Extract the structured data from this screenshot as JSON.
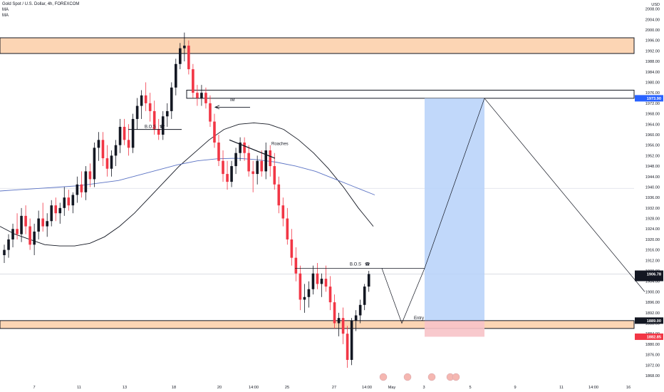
{
  "header": {
    "symbol": "Gold Spot / U.S. Dollar, 4h, FOREXCOM",
    "indicators": [
      "MA",
      "MA"
    ]
  },
  "axis": {
    "currency": "USD",
    "price_ticks": [
      1868,
      1872,
      1876,
      1880,
      1884,
      1888,
      1892,
      1896,
      1900,
      1904,
      1908,
      1912,
      1916,
      1920,
      1924,
      1928,
      1932,
      1936,
      1940,
      1944,
      1948,
      1952,
      1956,
      1960,
      1964,
      1968,
      1972,
      1976,
      1980,
      1984,
      1988,
      1992,
      1996,
      2000,
      2004,
      2008
    ],
    "time_labels": [
      "7",
      "11",
      "13",
      "18",
      "20",
      "14:00",
      "25",
      "27",
      "14:00",
      "May",
      "3",
      "5",
      "9",
      "11",
      "14:00",
      "16"
    ]
  },
  "price_tags": [
    {
      "label": "1973.90",
      "color": "#2962ff",
      "text_color": "#ffffff"
    },
    {
      "label": "1906.78",
      "sub": "47:59",
      "color": "#131722",
      "text_color": "#ffffff"
    },
    {
      "label": "1889.00",
      "color": "#131722",
      "text_color": "#ffffff"
    },
    {
      "label": "1882.85",
      "color": "#f23645",
      "text_color": "#ffffff"
    }
  ],
  "annotations": {
    "bos_left": "B.O.S",
    "bos_right": "B.O.S",
    "imbalance": "IM",
    "roaches": "Roaches",
    "entry": "Entry"
  },
  "colors": {
    "up_candle": "#131722",
    "down_candle": "#f23645",
    "zone_fill": "#fcd5b4",
    "target_fill": "#b6d1f9",
    "stop_fill": "#f7c3c8",
    "ma_fast": "#131722",
    "ma_slow": "#5b73c4"
  },
  "chart_data": {
    "type": "candlestick",
    "title": "Gold Spot / U.S. Dollar, 4h, FOREXCOM",
    "ylim": [
      1866,
      2010
    ],
    "zones": [
      {
        "kind": "supply",
        "low": 1991,
        "high": 1997
      },
      {
        "kind": "imbalance",
        "low": 1973.9,
        "high": 1977
      },
      {
        "kind": "demand",
        "low": 1886,
        "high": 1889
      }
    ],
    "position": {
      "direction": "long",
      "entry": 1889.0,
      "target": 1973.9,
      "stop": 1882.85
    },
    "last_price": 1906.78,
    "candles": [
      {
        "o": 1914,
        "h": 1918,
        "l": 1911,
        "c": 1916
      },
      {
        "o": 1916,
        "h": 1922,
        "l": 1913,
        "c": 1920
      },
      {
        "o": 1920,
        "h": 1926,
        "l": 1917,
        "c": 1924
      },
      {
        "o": 1924,
        "h": 1930,
        "l": 1920,
        "c": 1922
      },
      {
        "o": 1922,
        "h": 1932,
        "l": 1919,
        "c": 1929
      },
      {
        "o": 1929,
        "h": 1933,
        "l": 1922,
        "c": 1925
      },
      {
        "o": 1925,
        "h": 1928,
        "l": 1916,
        "c": 1918
      },
      {
        "o": 1918,
        "h": 1926,
        "l": 1914,
        "c": 1923
      },
      {
        "o": 1923,
        "h": 1931,
        "l": 1920,
        "c": 1928
      },
      {
        "o": 1928,
        "h": 1934,
        "l": 1923,
        "c": 1925
      },
      {
        "o": 1925,
        "h": 1930,
        "l": 1921,
        "c": 1927
      },
      {
        "o": 1927,
        "h": 1935,
        "l": 1925,
        "c": 1933
      },
      {
        "o": 1933,
        "h": 1936,
        "l": 1927,
        "c": 1930
      },
      {
        "o": 1930,
        "h": 1934,
        "l": 1926,
        "c": 1932
      },
      {
        "o": 1932,
        "h": 1940,
        "l": 1929,
        "c": 1936
      },
      {
        "o": 1936,
        "h": 1939,
        "l": 1931,
        "c": 1933
      },
      {
        "o": 1933,
        "h": 1938,
        "l": 1930,
        "c": 1937
      },
      {
        "o": 1937,
        "h": 1944,
        "l": 1934,
        "c": 1941
      },
      {
        "o": 1941,
        "h": 1946,
        "l": 1936,
        "c": 1938
      },
      {
        "o": 1938,
        "h": 1948,
        "l": 1935,
        "c": 1946
      },
      {
        "o": 1946,
        "h": 1949,
        "l": 1940,
        "c": 1943
      },
      {
        "o": 1943,
        "h": 1957,
        "l": 1940,
        "c": 1955
      },
      {
        "o": 1955,
        "h": 1961,
        "l": 1950,
        "c": 1958
      },
      {
        "o": 1958,
        "h": 1961,
        "l": 1948,
        "c": 1951
      },
      {
        "o": 1951,
        "h": 1956,
        "l": 1944,
        "c": 1947
      },
      {
        "o": 1947,
        "h": 1954,
        "l": 1944,
        "c": 1952
      },
      {
        "o": 1952,
        "h": 1958,
        "l": 1948,
        "c": 1956
      },
      {
        "o": 1956,
        "h": 1966,
        "l": 1953,
        "c": 1963
      },
      {
        "o": 1963,
        "h": 1966,
        "l": 1956,
        "c": 1958
      },
      {
        "o": 1958,
        "h": 1964,
        "l": 1952,
        "c": 1955
      },
      {
        "o": 1955,
        "h": 1968,
        "l": 1953,
        "c": 1966
      },
      {
        "o": 1966,
        "h": 1974,
        "l": 1962,
        "c": 1971
      },
      {
        "o": 1971,
        "h": 1977,
        "l": 1966,
        "c": 1975
      },
      {
        "o": 1975,
        "h": 1980,
        "l": 1969,
        "c": 1972
      },
      {
        "o": 1972,
        "h": 1976,
        "l": 1965,
        "c": 1969
      },
      {
        "o": 1969,
        "h": 1973,
        "l": 1960,
        "c": 1962
      },
      {
        "o": 1962,
        "h": 1966,
        "l": 1958,
        "c": 1960
      },
      {
        "o": 1960,
        "h": 1969,
        "l": 1958,
        "c": 1967
      },
      {
        "o": 1967,
        "h": 1972,
        "l": 1963,
        "c": 1969
      },
      {
        "o": 1969,
        "h": 1980,
        "l": 1966,
        "c": 1978
      },
      {
        "o": 1978,
        "h": 1989,
        "l": 1975,
        "c": 1987
      },
      {
        "o": 1987,
        "h": 1995,
        "l": 1985,
        "c": 1993
      },
      {
        "o": 1993,
        "h": 1999,
        "l": 1988,
        "c": 1994
      },
      {
        "o": 1994,
        "h": 1996,
        "l": 1983,
        "c": 1985
      },
      {
        "o": 1985,
        "h": 1987,
        "l": 1974,
        "c": 1976
      },
      {
        "o": 1976,
        "h": 1979,
        "l": 1971,
        "c": 1974
      },
      {
        "o": 1974,
        "h": 1979,
        "l": 1971,
        "c": 1976
      },
      {
        "o": 1976,
        "h": 1978,
        "l": 1970,
        "c": 1972
      },
      {
        "o": 1972,
        "h": 1975,
        "l": 1963,
        "c": 1965
      },
      {
        "o": 1965,
        "h": 1968,
        "l": 1955,
        "c": 1957
      },
      {
        "o": 1957,
        "h": 1960,
        "l": 1948,
        "c": 1950
      },
      {
        "o": 1950,
        "h": 1954,
        "l": 1942,
        "c": 1945
      },
      {
        "o": 1945,
        "h": 1950,
        "l": 1939,
        "c": 1942
      },
      {
        "o": 1942,
        "h": 1950,
        "l": 1940,
        "c": 1948
      },
      {
        "o": 1948,
        "h": 1955,
        "l": 1945,
        "c": 1953
      },
      {
        "o": 1953,
        "h": 1959,
        "l": 1950,
        "c": 1957
      },
      {
        "o": 1957,
        "h": 1959,
        "l": 1950,
        "c": 1953
      },
      {
        "o": 1953,
        "h": 1956,
        "l": 1944,
        "c": 1946
      },
      {
        "o": 1946,
        "h": 1950,
        "l": 1938,
        "c": 1945
      },
      {
        "o": 1945,
        "h": 1952,
        "l": 1941,
        "c": 1950
      },
      {
        "o": 1950,
        "h": 1954,
        "l": 1944,
        "c": 1946
      },
      {
        "o": 1946,
        "h": 1957,
        "l": 1943,
        "c": 1954
      },
      {
        "o": 1954,
        "h": 1956,
        "l": 1944,
        "c": 1948
      },
      {
        "o": 1948,
        "h": 1953,
        "l": 1939,
        "c": 1941
      },
      {
        "o": 1941,
        "h": 1944,
        "l": 1930,
        "c": 1933
      },
      {
        "o": 1933,
        "h": 1936,
        "l": 1925,
        "c": 1928
      },
      {
        "o": 1928,
        "h": 1932,
        "l": 1918,
        "c": 1920
      },
      {
        "o": 1920,
        "h": 1924,
        "l": 1910,
        "c": 1913
      },
      {
        "o": 1913,
        "h": 1917,
        "l": 1904,
        "c": 1907
      },
      {
        "o": 1907,
        "h": 1910,
        "l": 1893,
        "c": 1897
      },
      {
        "o": 1897,
        "h": 1903,
        "l": 1892,
        "c": 1898
      },
      {
        "o": 1898,
        "h": 1904,
        "l": 1894,
        "c": 1901
      },
      {
        "o": 1901,
        "h": 1910,
        "l": 1899,
        "c": 1907
      },
      {
        "o": 1907,
        "h": 1911,
        "l": 1901,
        "c": 1903
      },
      {
        "o": 1903,
        "h": 1907,
        "l": 1898,
        "c": 1905
      },
      {
        "o": 1905,
        "h": 1910,
        "l": 1900,
        "c": 1902
      },
      {
        "o": 1902,
        "h": 1906,
        "l": 1893,
        "c": 1896
      },
      {
        "o": 1896,
        "h": 1899,
        "l": 1886,
        "c": 1888
      },
      {
        "o": 1888,
        "h": 1892,
        "l": 1883,
        "c": 1890
      },
      {
        "o": 1890,
        "h": 1894,
        "l": 1880,
        "c": 1884
      },
      {
        "o": 1884,
        "h": 1887,
        "l": 1871,
        "c": 1874
      },
      {
        "o": 1874,
        "h": 1890,
        "l": 1872,
        "c": 1889
      },
      {
        "o": 1889,
        "h": 1893,
        "l": 1885,
        "c": 1891
      },
      {
        "o": 1891,
        "h": 1897,
        "l": 1888,
        "c": 1895
      },
      {
        "o": 1895,
        "h": 1903,
        "l": 1893,
        "c": 1902
      },
      {
        "o": 1902,
        "h": 1908,
        "l": 1900,
        "c": 1906.78
      }
    ],
    "ma_fast": [
      1925,
      1922,
      1920,
      1918,
      1917.5,
      1917.5,
      1918.5,
      1921,
      1925,
      1930,
      1936,
      1942,
      1948,
      1953,
      1958,
      1962,
      1964,
      1964.5,
      1964,
      1962,
      1958,
      1953,
      1947,
      1940,
      1932,
      1925
    ],
    "ma_slow": [
      1938.5,
      1939,
      1939.5,
      1940,
      1940.5,
      1941.5,
      1942.5,
      1944.5,
      1946.5,
      1948.5,
      1950,
      1950.8,
      1951,
      1950.5,
      1949.5,
      1948,
      1946,
      1943,
      1940,
      1937
    ]
  }
}
